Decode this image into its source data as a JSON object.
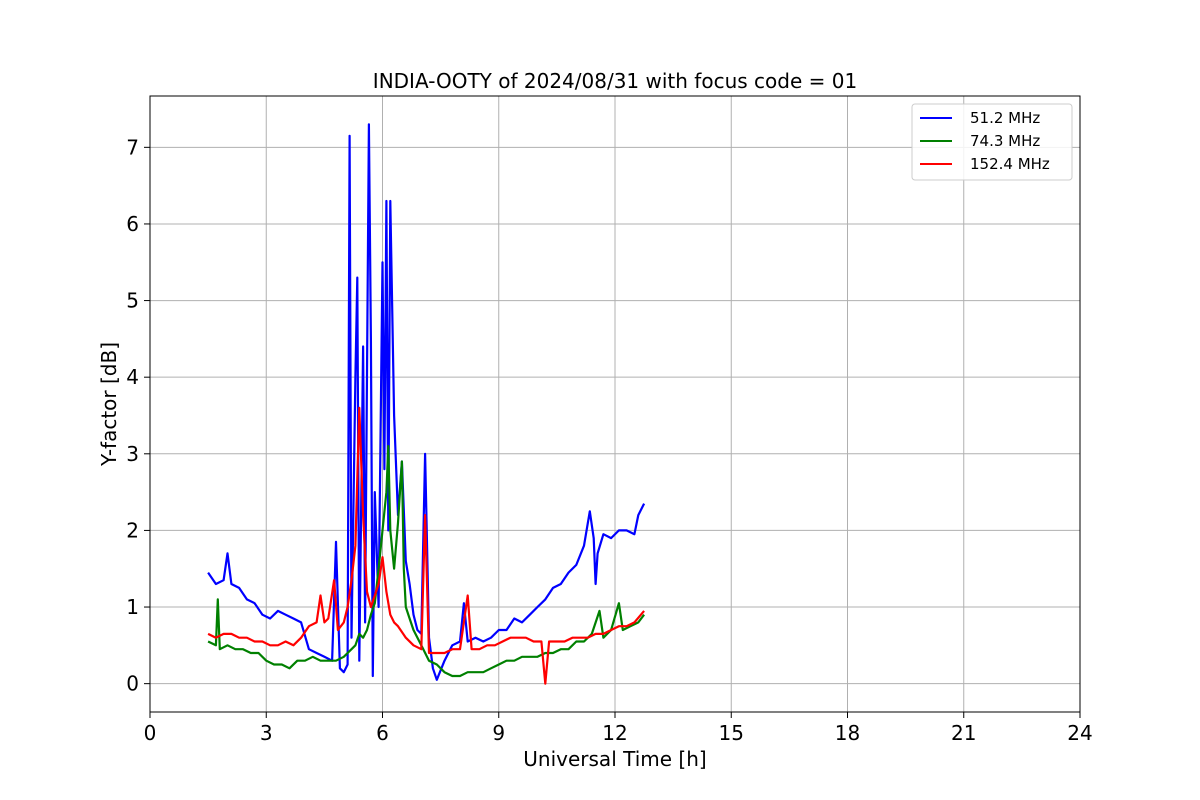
{
  "chart_data": {
    "type": "line",
    "title": "INDIA-OOTY of 2024/08/31 with focus code = 01",
    "xlabel": "Universal Time [h]",
    "ylabel": "Y-factor [dB]",
    "xlim": [
      0,
      24
    ],
    "ylim": [
      -0.37,
      7.67
    ],
    "xticks": [
      0,
      3,
      6,
      9,
      12,
      15,
      18,
      21,
      24
    ],
    "yticks": [
      0,
      1,
      2,
      3,
      4,
      5,
      6,
      7
    ],
    "grid": true,
    "legend_position": "top-right",
    "series": [
      {
        "name": "51.2 MHz",
        "color": "#0000ff",
        "points": [
          [
            1.5,
            1.45
          ],
          [
            1.7,
            1.3
          ],
          [
            1.9,
            1.35
          ],
          [
            2.0,
            1.7
          ],
          [
            2.1,
            1.3
          ],
          [
            2.3,
            1.25
          ],
          [
            2.5,
            1.1
          ],
          [
            2.7,
            1.05
          ],
          [
            2.9,
            0.9
          ],
          [
            3.1,
            0.85
          ],
          [
            3.3,
            0.95
          ],
          [
            3.5,
            0.9
          ],
          [
            3.7,
            0.85
          ],
          [
            3.9,
            0.8
          ],
          [
            4.1,
            0.45
          ],
          [
            4.3,
            0.4
          ],
          [
            4.5,
            0.35
          ],
          [
            4.7,
            0.3
          ],
          [
            4.8,
            1.85
          ],
          [
            4.9,
            0.2
          ],
          [
            5.0,
            0.15
          ],
          [
            5.1,
            0.25
          ],
          [
            5.15,
            7.15
          ],
          [
            5.2,
            0.6
          ],
          [
            5.3,
            4.0
          ],
          [
            5.35,
            5.3
          ],
          [
            5.4,
            0.3
          ],
          [
            5.5,
            4.4
          ],
          [
            5.55,
            0.8
          ],
          [
            5.65,
            7.3
          ],
          [
            5.7,
            4.5
          ],
          [
            5.75,
            0.1
          ],
          [
            5.8,
            2.5
          ],
          [
            5.9,
            1.0
          ],
          [
            6.0,
            5.5
          ],
          [
            6.05,
            2.8
          ],
          [
            6.1,
            6.3
          ],
          [
            6.15,
            2.0
          ],
          [
            6.2,
            6.3
          ],
          [
            6.3,
            3.5
          ],
          [
            6.4,
            2.2
          ],
          [
            6.5,
            2.9
          ],
          [
            6.6,
            1.6
          ],
          [
            6.7,
            1.3
          ],
          [
            6.8,
            0.9
          ],
          [
            6.9,
            0.7
          ],
          [
            7.0,
            0.65
          ],
          [
            7.1,
            3.0
          ],
          [
            7.2,
            0.6
          ],
          [
            7.3,
            0.2
          ],
          [
            7.4,
            0.05
          ],
          [
            7.6,
            0.3
          ],
          [
            7.8,
            0.5
          ],
          [
            8.0,
            0.55
          ],
          [
            8.1,
            1.05
          ],
          [
            8.2,
            0.55
          ],
          [
            8.4,
            0.6
          ],
          [
            8.6,
            0.55
          ],
          [
            8.8,
            0.6
          ],
          [
            9.0,
            0.7
          ],
          [
            9.2,
            0.7
          ],
          [
            9.4,
            0.85
          ],
          [
            9.6,
            0.8
          ],
          [
            9.8,
            0.9
          ],
          [
            10.0,
            1.0
          ],
          [
            10.2,
            1.1
          ],
          [
            10.4,
            1.25
          ],
          [
            10.6,
            1.3
          ],
          [
            10.8,
            1.45
          ],
          [
            11.0,
            1.55
          ],
          [
            11.2,
            1.8
          ],
          [
            11.35,
            2.25
          ],
          [
            11.45,
            1.9
          ],
          [
            11.5,
            1.3
          ],
          [
            11.55,
            1.7
          ],
          [
            11.7,
            1.95
          ],
          [
            11.9,
            1.9
          ],
          [
            12.1,
            2.0
          ],
          [
            12.3,
            2.0
          ],
          [
            12.5,
            1.95
          ],
          [
            12.6,
            2.2
          ],
          [
            12.75,
            2.35
          ]
        ]
      },
      {
        "name": "74.3 MHz",
        "color": "#008000",
        "points": [
          [
            1.5,
            0.55
          ],
          [
            1.7,
            0.5
          ],
          [
            1.75,
            1.1
          ],
          [
            1.8,
            0.45
          ],
          [
            2.0,
            0.5
          ],
          [
            2.2,
            0.45
          ],
          [
            2.4,
            0.45
          ],
          [
            2.6,
            0.4
          ],
          [
            2.8,
            0.4
          ],
          [
            3.0,
            0.3
          ],
          [
            3.2,
            0.25
          ],
          [
            3.4,
            0.25
          ],
          [
            3.6,
            0.2
          ],
          [
            3.8,
            0.3
          ],
          [
            4.0,
            0.3
          ],
          [
            4.2,
            0.35
          ],
          [
            4.4,
            0.3
          ],
          [
            4.6,
            0.3
          ],
          [
            4.8,
            0.3
          ],
          [
            5.0,
            0.35
          ],
          [
            5.1,
            0.4
          ],
          [
            5.2,
            0.45
          ],
          [
            5.3,
            0.5
          ],
          [
            5.4,
            0.65
          ],
          [
            5.5,
            0.6
          ],
          [
            5.6,
            0.7
          ],
          [
            5.7,
            0.9
          ],
          [
            5.8,
            1.05
          ],
          [
            5.9,
            1.5
          ],
          [
            6.0,
            2.0
          ],
          [
            6.1,
            2.5
          ],
          [
            6.15,
            3.1
          ],
          [
            6.2,
            2.0
          ],
          [
            6.3,
            1.5
          ],
          [
            6.4,
            2.1
          ],
          [
            6.5,
            2.9
          ],
          [
            6.55,
            1.5
          ],
          [
            6.6,
            1.0
          ],
          [
            6.7,
            0.85
          ],
          [
            6.8,
            0.7
          ],
          [
            7.0,
            0.5
          ],
          [
            7.2,
            0.3
          ],
          [
            7.4,
            0.25
          ],
          [
            7.6,
            0.15
          ],
          [
            7.8,
            0.1
          ],
          [
            8.0,
            0.1
          ],
          [
            8.2,
            0.15
          ],
          [
            8.4,
            0.15
          ],
          [
            8.6,
            0.15
          ],
          [
            8.8,
            0.2
          ],
          [
            9.0,
            0.25
          ],
          [
            9.2,
            0.3
          ],
          [
            9.4,
            0.3
          ],
          [
            9.6,
            0.35
          ],
          [
            9.8,
            0.35
          ],
          [
            10.0,
            0.35
          ],
          [
            10.2,
            0.4
          ],
          [
            10.4,
            0.4
          ],
          [
            10.6,
            0.45
          ],
          [
            10.8,
            0.45
          ],
          [
            11.0,
            0.55
          ],
          [
            11.2,
            0.55
          ],
          [
            11.4,
            0.65
          ],
          [
            11.6,
            0.95
          ],
          [
            11.7,
            0.6
          ],
          [
            11.9,
            0.7
          ],
          [
            12.1,
            1.05
          ],
          [
            12.2,
            0.7
          ],
          [
            12.4,
            0.75
          ],
          [
            12.6,
            0.8
          ],
          [
            12.75,
            0.9
          ]
        ]
      },
      {
        "name": "152.4 MHz",
        "color": "#ff0000",
        "points": [
          [
            1.5,
            0.65
          ],
          [
            1.7,
            0.6
          ],
          [
            1.9,
            0.65
          ],
          [
            2.1,
            0.65
          ],
          [
            2.3,
            0.6
          ],
          [
            2.5,
            0.6
          ],
          [
            2.7,
            0.55
          ],
          [
            2.9,
            0.55
          ],
          [
            3.1,
            0.5
          ],
          [
            3.3,
            0.5
          ],
          [
            3.5,
            0.55
          ],
          [
            3.7,
            0.5
          ],
          [
            3.9,
            0.6
          ],
          [
            4.1,
            0.75
          ],
          [
            4.3,
            0.8
          ],
          [
            4.4,
            1.15
          ],
          [
            4.5,
            0.8
          ],
          [
            4.6,
            0.85
          ],
          [
            4.75,
            1.35
          ],
          [
            4.85,
            0.7
          ],
          [
            5.0,
            0.8
          ],
          [
            5.1,
            1.0
          ],
          [
            5.2,
            1.35
          ],
          [
            5.3,
            1.8
          ],
          [
            5.4,
            3.6
          ],
          [
            5.5,
            2.2
          ],
          [
            5.6,
            1.2
          ],
          [
            5.7,
            1.0
          ],
          [
            5.8,
            1.15
          ],
          [
            5.9,
            1.3
          ],
          [
            6.0,
            1.65
          ],
          [
            6.1,
            1.2
          ],
          [
            6.2,
            0.9
          ],
          [
            6.3,
            0.8
          ],
          [
            6.4,
            0.75
          ],
          [
            6.6,
            0.6
          ],
          [
            6.8,
            0.5
          ],
          [
            7.0,
            0.45
          ],
          [
            7.1,
            2.2
          ],
          [
            7.2,
            0.4
          ],
          [
            7.4,
            0.4
          ],
          [
            7.6,
            0.4
          ],
          [
            7.8,
            0.45
          ],
          [
            8.0,
            0.45
          ],
          [
            8.2,
            1.15
          ],
          [
            8.3,
            0.45
          ],
          [
            8.5,
            0.45
          ],
          [
            8.7,
            0.5
          ],
          [
            8.9,
            0.5
          ],
          [
            9.1,
            0.55
          ],
          [
            9.3,
            0.6
          ],
          [
            9.5,
            0.6
          ],
          [
            9.7,
            0.6
          ],
          [
            9.9,
            0.55
          ],
          [
            10.1,
            0.55
          ],
          [
            10.2,
            0.0
          ],
          [
            10.3,
            0.55
          ],
          [
            10.5,
            0.55
          ],
          [
            10.7,
            0.55
          ],
          [
            10.9,
            0.6
          ],
          [
            11.1,
            0.6
          ],
          [
            11.3,
            0.6
          ],
          [
            11.5,
            0.65
          ],
          [
            11.7,
            0.65
          ],
          [
            11.9,
            0.7
          ],
          [
            12.1,
            0.75
          ],
          [
            12.3,
            0.75
          ],
          [
            12.5,
            0.8
          ],
          [
            12.75,
            0.95
          ]
        ]
      }
    ]
  }
}
